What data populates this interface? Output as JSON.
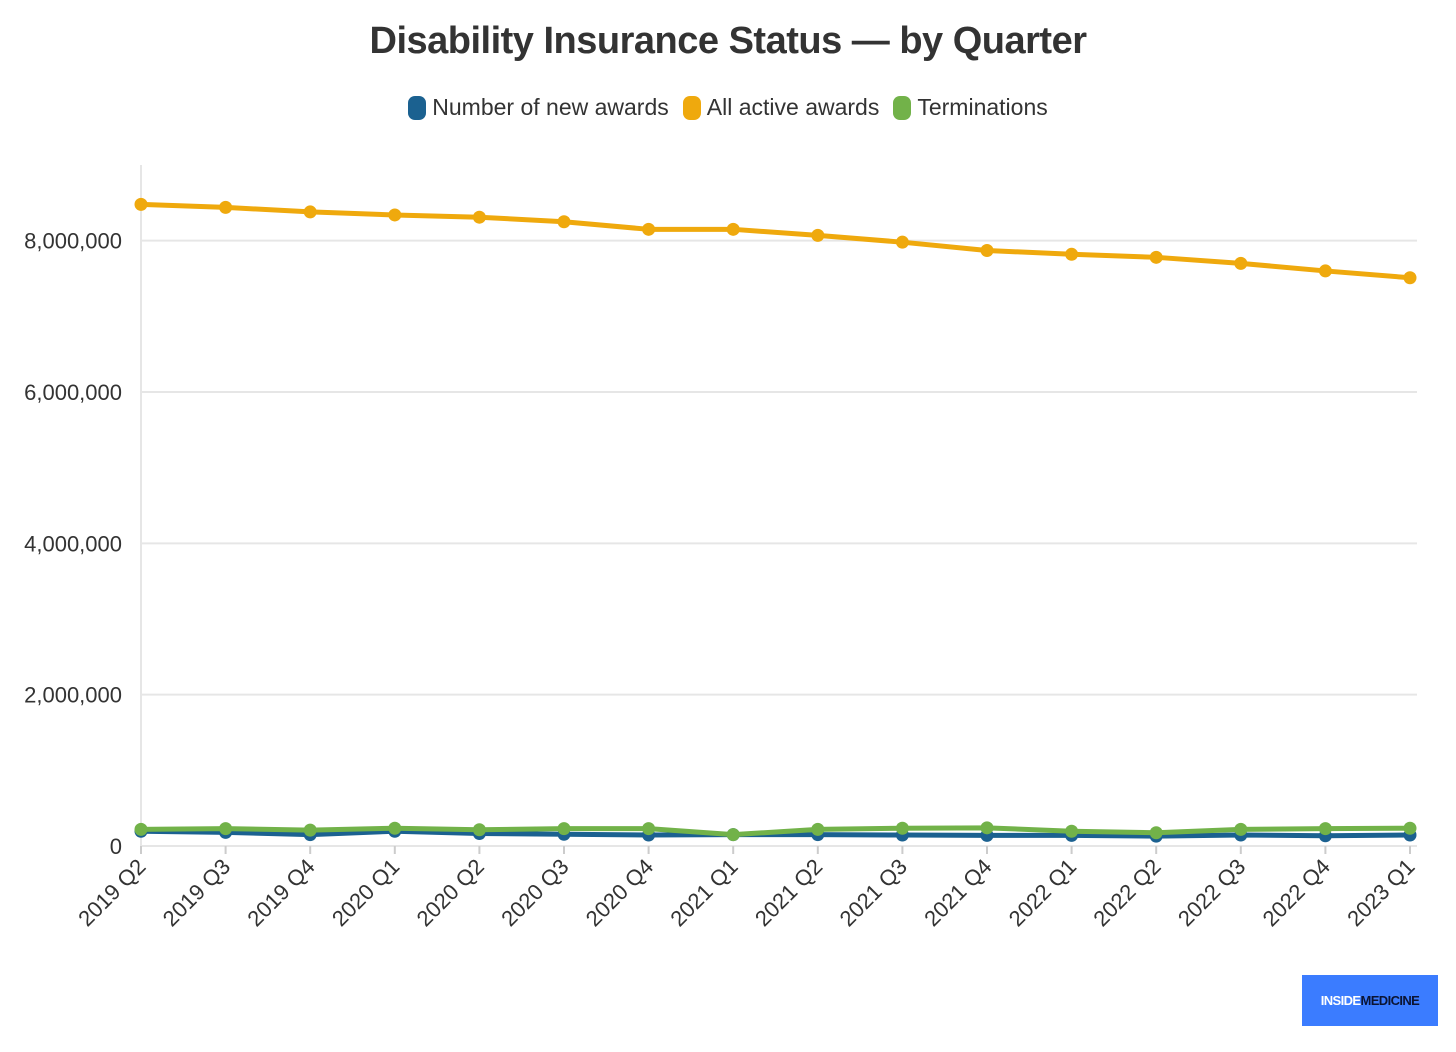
{
  "chart_data": {
    "type": "line",
    "title": "Disability Insurance Status — by Quarter",
    "xlabel": "",
    "ylabel": "",
    "categories": [
      "2019 Q2",
      "2019 Q3",
      "2019 Q4",
      "2020 Q1",
      "2020 Q2",
      "2020 Q3",
      "2020 Q4",
      "2021 Q1",
      "2021 Q2",
      "2021 Q3",
      "2021 Q4",
      "2022 Q1",
      "2022 Q2",
      "2022 Q3",
      "2022 Q4",
      "2023 Q1"
    ],
    "ylim": [
      0,
      9000000
    ],
    "yticks": [
      0,
      2000000,
      4000000,
      6000000,
      8000000
    ],
    "ytick_labels": [
      "0",
      "2,000,000",
      "4,000,000",
      "6,000,000",
      "8,000,000"
    ],
    "grid": true,
    "legend_position": "top-center",
    "series": [
      {
        "name": "Number of new awards",
        "color": "#1b6190",
        "values": [
          195000,
          180000,
          150000,
          195000,
          165000,
          155000,
          145000,
          150000,
          150000,
          145000,
          140000,
          140000,
          130000,
          145000,
          135000,
          145000
        ]
      },
      {
        "name": "All active awards",
        "color": "#efa90d",
        "values": [
          8480000,
          8440000,
          8380000,
          8340000,
          8310000,
          8250000,
          8150000,
          8150000,
          8070000,
          7980000,
          7870000,
          7820000,
          7780000,
          7700000,
          7600000,
          7510000
        ]
      },
      {
        "name": "Terminations",
        "color": "#72b249",
        "values": [
          220000,
          230000,
          210000,
          235000,
          215000,
          230000,
          230000,
          150000,
          220000,
          235000,
          240000,
          195000,
          175000,
          220000,
          230000,
          235000
        ]
      }
    ]
  },
  "brand": {
    "part1": "INSIDE",
    "part2": "MEDICINE",
    "color": "#3b7cff"
  }
}
